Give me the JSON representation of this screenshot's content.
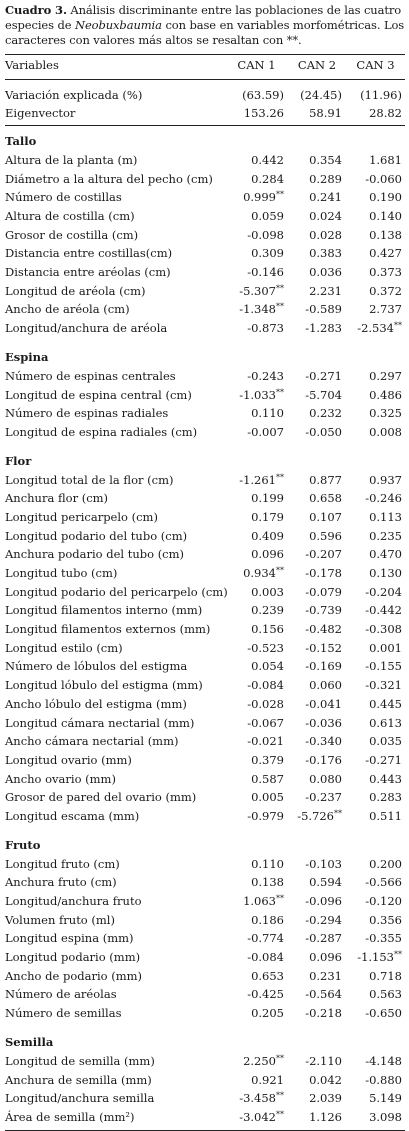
{
  "caption": {
    "label": "Cuadro 3.",
    "text_before": " Análisis discriminante entre las poblaciones de las cuatro especies de ",
    "genus": "Neobuxbaumia",
    "text_after": " con base en variables morfométricas. Los caracteres con valores más altos se resaltan con **."
  },
  "header": {
    "variables": "Variables",
    "can1": "CAN 1",
    "can2": "CAN 2",
    "can3": "CAN 3"
  },
  "summary": [
    {
      "label": "Variación explicada (%)",
      "v": [
        "(63.59)",
        "(24.45)",
        "(11.96)"
      ]
    },
    {
      "label": "Eigenvector",
      "v": [
        "153.26",
        "58.91",
        "28.82"
      ]
    }
  ],
  "sections": [
    {
      "title": "Tallo",
      "rows": [
        {
          "label": "Altura de la planta (m)",
          "v": [
            "0.442",
            "0.354",
            "1.681"
          ]
        },
        {
          "label": "Diámetro a la altura del pecho (cm)",
          "v": [
            "0.284",
            "0.289",
            "-0.060"
          ]
        },
        {
          "label": "Número de costillas",
          "v": [
            "0.999**",
            "0.241",
            "0.190"
          ]
        },
        {
          "label": "Altura de costilla (cm)",
          "v": [
            "0.059",
            "0.024",
            "0.140"
          ]
        },
        {
          "label": "Grosor de costilla (cm)",
          "v": [
            "-0.098",
            "0.028",
            "0.138"
          ]
        },
        {
          "label": "Distancia entre costillas(cm)",
          "v": [
            "0.309",
            "0.383",
            "0.427"
          ]
        },
        {
          "label": "Distancia entre aréolas (cm)",
          "v": [
            "-0.146",
            "0.036",
            "0.373"
          ]
        },
        {
          "label": "Longitud de aréola (cm)",
          "v": [
            "-5.307**",
            "2.231",
            "0.372"
          ]
        },
        {
          "label": "Ancho de aréola (cm)",
          "v": [
            "-1.348**",
            "-0.589",
            "2.737"
          ]
        },
        {
          "label": "Longitud/anchura de aréola",
          "v": [
            "-0.873",
            "-1.283",
            "-2.534**"
          ]
        }
      ]
    },
    {
      "title": "Espina",
      "rows": [
        {
          "label": "Número de espinas centrales",
          "v": [
            "-0.243",
            "-0.271",
            "0.297"
          ]
        },
        {
          "label": "Longitud de espina central (cm)",
          "v": [
            "-1.033**",
            "-5.704",
            "0.486"
          ]
        },
        {
          "label": "Número de espinas radiales",
          "v": [
            "0.110",
            "0.232",
            "0.325"
          ]
        },
        {
          "label": "Longitud de espina radiales (cm)",
          "v": [
            "-0.007",
            "-0.050",
            "0.008"
          ]
        }
      ]
    },
    {
      "title": "Flor",
      "rows": [
        {
          "label": "Longitud total de la flor (cm)",
          "v": [
            "-1.261**",
            "0.877",
            "0.937"
          ]
        },
        {
          "label": "Anchura flor (cm)",
          "v": [
            "0.199",
            "0.658",
            "-0.246"
          ]
        },
        {
          "label": "Longitud pericarpelo (cm)",
          "v": [
            "0.179",
            "0.107",
            "0.113"
          ]
        },
        {
          "label": "Longitud podario del tubo (cm)",
          "v": [
            "0.409",
            "0.596",
            "0.235"
          ]
        },
        {
          "label": "Anchura podario del tubo (cm)",
          "v": [
            "0.096",
            "-0.207",
            "0.470"
          ]
        },
        {
          "label": "Longitud tubo (cm)",
          "v": [
            "0.934**",
            "-0.178",
            "0.130"
          ]
        },
        {
          "label": "Longitud podario del pericarpelo (cm)",
          "v": [
            "0.003",
            "-0.079",
            "-0.204"
          ]
        },
        {
          "label": "Longitud filamentos interno (mm)",
          "v": [
            "0.239",
            "-0.739",
            "-0.442"
          ]
        },
        {
          "label": "Longitud filamentos externos (mm)",
          "v": [
            "0.156",
            "-0.482",
            "-0.308"
          ]
        },
        {
          "label": "Longitud estilo (cm)",
          "v": [
            "-0.523",
            "-0.152",
            "0.001"
          ]
        },
        {
          "label": "Número de lóbulos del estigma",
          "v": [
            "0.054",
            "-0.169",
            "-0.155"
          ]
        },
        {
          "label": "Longitud lóbulo del estigma (mm)",
          "v": [
            "-0.084",
            "0.060",
            "-0.321"
          ]
        },
        {
          "label": "Ancho lóbulo del estigma (mm)",
          "v": [
            "-0.028",
            "-0.041",
            "0.445"
          ]
        },
        {
          "label": "Longitud cámara nectarial (mm)",
          "v": [
            "-0.067",
            "-0.036",
            "0.613"
          ]
        },
        {
          "label": "Ancho cámara nectarial (mm)",
          "v": [
            "-0.021",
            "-0.340",
            "0.035"
          ]
        },
        {
          "label": "Longitud ovario (mm)",
          "v": [
            "0.379",
            "-0.176",
            "-0.271"
          ]
        },
        {
          "label": "Ancho ovario (mm)",
          "v": [
            "0.587",
            "0.080",
            "0.443"
          ]
        },
        {
          "label": "Grosor de pared del ovario (mm)",
          "v": [
            "0.005",
            "-0.237",
            "0.283"
          ]
        },
        {
          "label": "Longitud escama (mm)",
          "v": [
            "-0.979",
            "-5.726**",
            "0.511"
          ]
        }
      ]
    },
    {
      "title": "Fruto",
      "rows": [
        {
          "label": "Longitud fruto (cm)",
          "v": [
            "0.110",
            "-0.103",
            "0.200"
          ]
        },
        {
          "label": "Anchura fruto (cm)",
          "v": [
            "0.138",
            "0.594",
            "-0.566"
          ]
        },
        {
          "label": "Longitud/anchura fruto",
          "v": [
            "1.063**",
            "-0.096",
            "-0.120"
          ]
        },
        {
          "label": "Volumen fruto (ml)",
          "v": [
            "0.186",
            "-0.294",
            "0.356"
          ]
        },
        {
          "label": "Longitud espina (mm)",
          "v": [
            "-0.774",
            "-0.287",
            "-0.355"
          ]
        },
        {
          "label": "Longitud podario (mm)",
          "v": [
            "-0.084",
            "0.096",
            "-1.153**"
          ]
        },
        {
          "label": "Ancho de podario (mm)",
          "v": [
            "0.653",
            "0.231",
            "0.718"
          ]
        },
        {
          "label": "Número de aréolas",
          "v": [
            "-0.425",
            "-0.564",
            "0.563"
          ]
        },
        {
          "label": "Número de semillas",
          "v": [
            "0.205",
            "-0.218",
            "-0.650"
          ]
        }
      ]
    },
    {
      "title": "Semilla",
      "rows": [
        {
          "label": "Longitud de semilla (mm)",
          "v": [
            "2.250**",
            "-2.110",
            "-4.148"
          ]
        },
        {
          "label": "Anchura de semilla (mm)",
          "v": [
            "0.921",
            "0.042",
            "-0.880"
          ]
        },
        {
          "label": "Longitud/anchura semilla",
          "v": [
            "-3.458**",
            "2.039",
            "5.149"
          ]
        },
        {
          "label": "Área de semilla (mm²)",
          "v": [
            "-3.042**",
            "1.126",
            "3.098"
          ]
        }
      ]
    }
  ]
}
